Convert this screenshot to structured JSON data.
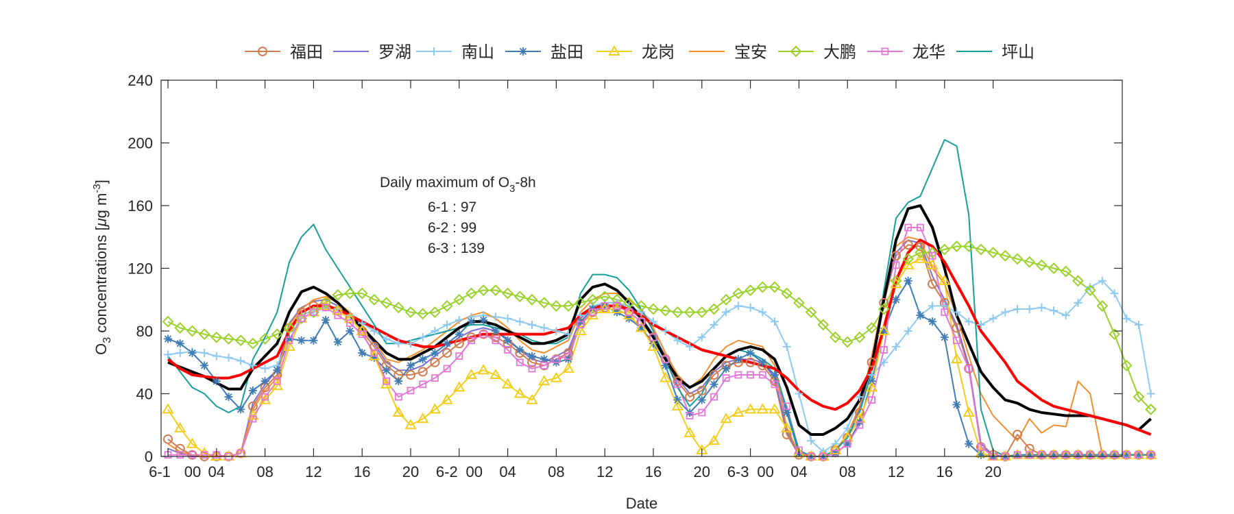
{
  "chart_data": {
    "type": "line",
    "xlabel": "Date",
    "ylabel": "O",
    "ylabel_sub": "3",
    "ylabel_rest": " concentrations [",
    "ylabel_mu": "μ",
    "ylabel_unit": "g m",
    "ylabel_sup": "-3",
    "ylabel_close": "]",
    "xlim": [
      0,
      71
    ],
    "ylim": [
      0,
      240
    ],
    "yticks": [
      0,
      40,
      80,
      120,
      160,
      200,
      240
    ],
    "xtick_positions": [
      0,
      4,
      8,
      12,
      16,
      20,
      24,
      28,
      32,
      36,
      40,
      44,
      48,
      52,
      56,
      60,
      64,
      68
    ],
    "xtick_labels": [
      "6-1",
      "00",
      "04",
      "08",
      "12",
      "16",
      "20",
      "6-2",
      "00",
      "04",
      "08",
      "12",
      "16",
      "20",
      "6-3",
      "00",
      "04",
      "08",
      "12",
      "16",
      "20"
    ],
    "grid": false,
    "legend_position": "top (outside, horizontal)",
    "annotation": {
      "title_main": "Daily maximum of O",
      "title_sub": "3",
      "title_tail": "-8h",
      "lines": [
        "6-1 : 97",
        "6-2 : 99",
        "6-3 : 139"
      ]
    },
    "series": [
      {
        "name": "福田",
        "color": "#d17c4f",
        "marker": "circle",
        "values": [
          11,
          5,
          1,
          0,
          0,
          0,
          2,
          32,
          44,
          52,
          82,
          92,
          96,
          98,
          93,
          88,
          80,
          70,
          58,
          52,
          52,
          54,
          60,
          66,
          72,
          76,
          78,
          76,
          72,
          66,
          60,
          58,
          62,
          66,
          85,
          92,
          95,
          96,
          92,
          86,
          76,
          62,
          48,
          38,
          42,
          52,
          58,
          60,
          60,
          58,
          48,
          14,
          1,
          0,
          0,
          4,
          12,
          28,
          60,
          98,
          128,
          135,
          134,
          110,
          98,
          82,
          56,
          6,
          1,
          0,
          14,
          5,
          1,
          1,
          1,
          1,
          1,
          1,
          1,
          1,
          1,
          1
        ]
      },
      {
        "name": "罗湖",
        "color": "#7e6fd6",
        "marker": "none",
        "values": [
          5,
          2,
          0,
          0,
          0,
          0,
          2,
          34,
          46,
          55,
          85,
          95,
          99,
          100,
          96,
          90,
          82,
          72,
          60,
          55,
          55,
          58,
          64,
          70,
          76,
          80,
          82,
          80,
          75,
          68,
          62,
          60,
          64,
          68,
          88,
          95,
          98,
          98,
          94,
          88,
          78,
          64,
          50,
          40,
          44,
          54,
          60,
          62,
          62,
          60,
          50,
          16,
          1,
          0,
          0,
          4,
          14,
          30,
          62,
          100,
          130,
          138,
          136,
          115,
          100,
          84,
          58,
          8,
          1,
          0,
          1,
          1,
          1,
          1,
          1,
          1,
          1,
          1,
          1,
          1,
          1,
          1
        ]
      },
      {
        "name": "南山",
        "color": "#8ec9f2",
        "marker": "plus",
        "values": [
          65,
          66,
          67,
          66,
          64,
          63,
          61,
          58,
          56,
          58,
          74,
          90,
          93,
          95,
          94,
          90,
          85,
          80,
          75,
          72,
          72,
          76,
          80,
          84,
          87,
          89,
          90,
          89,
          88,
          86,
          84,
          82,
          80,
          78,
          90,
          96,
          98,
          98,
          96,
          92,
          86,
          80,
          74,
          70,
          76,
          84,
          92,
          96,
          95,
          92,
          86,
          70,
          40,
          10,
          3,
          8,
          18,
          38,
          52,
          60,
          70,
          80,
          90,
          96,
          96,
          92,
          86,
          84,
          88,
          92,
          94,
          94,
          95,
          93,
          90,
          98,
          108,
          112,
          104,
          88,
          84,
          40
        ]
      },
      {
        "name": "盐田",
        "color": "#3f7bb5",
        "marker": "asterisk",
        "values": [
          75,
          72,
          66,
          58,
          48,
          38,
          30,
          42,
          48,
          55,
          75,
          74,
          74,
          87,
          73,
          80,
          66,
          63,
          55,
          48,
          58,
          62,
          66,
          72,
          78,
          86,
          87,
          80,
          74,
          68,
          64,
          62,
          60,
          62,
          86,
          94,
          96,
          92,
          88,
          82,
          72,
          58,
          36,
          28,
          36,
          46,
          56,
          62,
          66,
          60,
          52,
          28,
          2,
          0,
          0,
          2,
          8,
          22,
          48,
          80,
          100,
          112,
          90,
          86,
          76,
          33,
          8,
          1,
          0,
          0,
          1,
          1,
          1,
          1,
          1,
          1,
          1,
          1,
          1,
          1,
          1,
          1
        ]
      },
      {
        "name": "龙岗",
        "color": "#f2cd1d",
        "marker": "triangle",
        "values": [
          30,
          18,
          8,
          2,
          0,
          0,
          2,
          26,
          36,
          45,
          70,
          88,
          92,
          96,
          93,
          88,
          80,
          64,
          46,
          28,
          20,
          24,
          30,
          36,
          44,
          52,
          55,
          52,
          46,
          40,
          36,
          48,
          50,
          56,
          80,
          90,
          94,
          94,
          90,
          82,
          70,
          50,
          32,
          15,
          4,
          10,
          24,
          28,
          30,
          30,
          30,
          18,
          2,
          0,
          0,
          4,
          12,
          24,
          44,
          80,
          110,
          122,
          126,
          122,
          112,
          62,
          28,
          2,
          0,
          0,
          1,
          1,
          1,
          1,
          1,
          1,
          1,
          1,
          1,
          1,
          1,
          1
        ]
      },
      {
        "name": "宝安",
        "color": "#f28e2b",
        "marker": "none",
        "values": [
          8,
          3,
          1,
          0,
          0,
          0,
          2,
          30,
          42,
          50,
          84,
          94,
          100,
          102,
          98,
          92,
          84,
          74,
          62,
          60,
          64,
          68,
          74,
          80,
          86,
          90,
          92,
          88,
          82,
          74,
          68,
          66,
          70,
          74,
          92,
          100,
          104,
          104,
          100,
          94,
          82,
          66,
          52,
          44,
          50,
          62,
          70,
          74,
          72,
          70,
          58,
          18,
          2,
          0,
          0,
          4,
          14,
          32,
          64,
          102,
          134,
          140,
          138,
          120,
          110,
          90,
          64,
          40,
          26,
          18,
          10,
          24,
          15,
          20,
          19,
          48,
          40,
          1,
          1,
          1,
          1,
          1
        ]
      },
      {
        "name": "大鹏",
        "color": "#99d12a",
        "marker": "diamond",
        "values": [
          86,
          82,
          80,
          78,
          76,
          75,
          74,
          72,
          75,
          78,
          82,
          88,
          92,
          98,
          103,
          104,
          104,
          100,
          98,
          95,
          92,
          91,
          92,
          96,
          100,
          104,
          106,
          106,
          104,
          102,
          100,
          98,
          96,
          96,
          98,
          100,
          102,
          100,
          98,
          96,
          94,
          93,
          92,
          92,
          92,
          94,
          100,
          104,
          106,
          108,
          108,
          104,
          98,
          92,
          84,
          76,
          73,
          76,
          82,
          94,
          112,
          126,
          130,
          130,
          132,
          134,
          134,
          132,
          130,
          128,
          126,
          124,
          122,
          120,
          118,
          112,
          106,
          96,
          78,
          58,
          38,
          30
        ]
      },
      {
        "name": "龙华",
        "color": "#e277d6",
        "marker": "square",
        "values": [
          1,
          1,
          1,
          1,
          1,
          0,
          2,
          24,
          38,
          48,
          74,
          88,
          92,
          95,
          90,
          85,
          78,
          66,
          48,
          38,
          42,
          46,
          50,
          56,
          64,
          74,
          78,
          74,
          68,
          60,
          56,
          58,
          62,
          64,
          84,
          92,
          96,
          96,
          92,
          86,
          76,
          62,
          46,
          26,
          28,
          38,
          50,
          52,
          52,
          52,
          46,
          32,
          4,
          0,
          0,
          2,
          8,
          20,
          36,
          68,
          122,
          146,
          146,
          128,
          92,
          74,
          56,
          6,
          0,
          0,
          1,
          1,
          1,
          1,
          1,
          1,
          1,
          1,
          1,
          1,
          1,
          1
        ]
      },
      {
        "name": "坪山",
        "color": "#169e9b",
        "marker": "none",
        "values": [
          64,
          54,
          44,
          40,
          32,
          28,
          32,
          62,
          76,
          92,
          124,
          140,
          148,
          132,
          120,
          108,
          96,
          84,
          72,
          72,
          74,
          76,
          78,
          80,
          82,
          84,
          84,
          82,
          80,
          78,
          74,
          72,
          72,
          76,
          104,
          116,
          116,
          114,
          106,
          94,
          80,
          62,
          44,
          32,
          40,
          56,
          64,
          68,
          66,
          62,
          56,
          30,
          4,
          0,
          0,
          4,
          12,
          28,
          54,
          106,
          152,
          162,
          166,
          184,
          202,
          198,
          154,
          30,
          4,
          0,
          1,
          1,
          1,
          1,
          1,
          1,
          1,
          1,
          1,
          1,
          1,
          1
        ]
      }
    ],
    "extra_lines": [
      {
        "color": "#000000",
        "values": [
          60,
          57,
          54,
          51,
          47,
          43,
          43,
          56,
          64,
          72,
          92,
          105,
          108,
          104,
          98,
          90,
          82,
          74,
          66,
          62,
          62,
          66,
          70,
          76,
          82,
          86,
          86,
          84,
          80,
          76,
          72,
          72,
          74,
          78,
          100,
          108,
          110,
          106,
          98,
          88,
          76,
          62,
          50,
          44,
          48,
          56,
          64,
          68,
          70,
          68,
          62,
          44,
          20,
          14,
          14,
          18,
          24,
          36,
          58,
          100,
          138,
          158,
          160,
          146,
          120,
          90,
          72,
          54,
          44,
          36,
          34,
          30,
          28,
          27,
          26,
          26,
          26,
          24,
          22,
          20,
          17,
          24
        ]
      },
      {
        "color": "#ff0000",
        "values": [
          62,
          56,
          52,
          51,
          50,
          50,
          52,
          56,
          60,
          64,
          80,
          92,
          96,
          96,
          94,
          90,
          86,
          82,
          78,
          74,
          72,
          70,
          70,
          72,
          74,
          76,
          78,
          78,
          78,
          78,
          78,
          78,
          80,
          82,
          90,
          95,
          96,
          96,
          94,
          90,
          84,
          80,
          76,
          72,
          68,
          66,
          64,
          62,
          60,
          58,
          56,
          50,
          42,
          36,
          32,
          30,
          34,
          42,
          56,
          82,
          112,
          130,
          138,
          134,
          124,
          110,
          96,
          80,
          70,
          60,
          48,
          42,
          36,
          32,
          30,
          28,
          26,
          24,
          22,
          20,
          17,
          14
        ]
      }
    ]
  },
  "legend_labels": [
    "福田",
    "罗湖",
    "南山",
    "盐田",
    "龙岗",
    "宝安",
    "大鹏",
    "龙华",
    "坪山"
  ]
}
